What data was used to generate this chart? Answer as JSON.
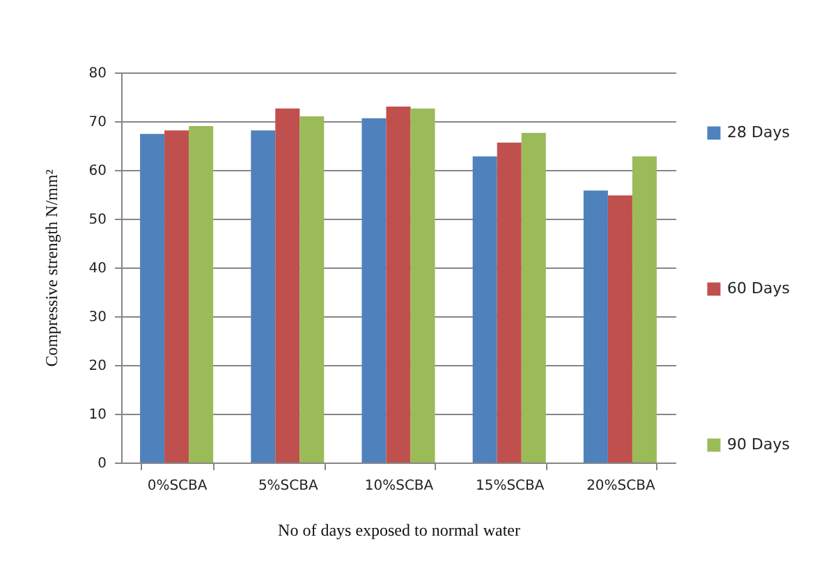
{
  "chart_data": {
    "type": "bar",
    "categories": [
      "0%SCBA",
      "5%SCBA",
      "10%SCBA",
      "15%SCBA",
      "20%SCBA"
    ],
    "series": [
      {
        "name": "28 Days",
        "color": "#4f81bd",
        "values": [
          67.4,
          68.1,
          70.6,
          62.8,
          55.8
        ]
      },
      {
        "name": "60 Days",
        "color": "#c0504d",
        "values": [
          68.1,
          72.6,
          73.0,
          65.6,
          54.8
        ]
      },
      {
        "name": "90 Days",
        "color": "#9bbb59",
        "values": [
          69.0,
          71.0,
          72.6,
          67.6,
          62.8
        ]
      }
    ],
    "xlabel": "No of days exposed to normal water",
    "ylabel": "Compressive strength N/mm²",
    "ylim": [
      0,
      80
    ],
    "yticks": [
      0,
      10,
      20,
      30,
      40,
      50,
      60,
      70,
      80
    ],
    "grid": "y",
    "legend": "right"
  }
}
